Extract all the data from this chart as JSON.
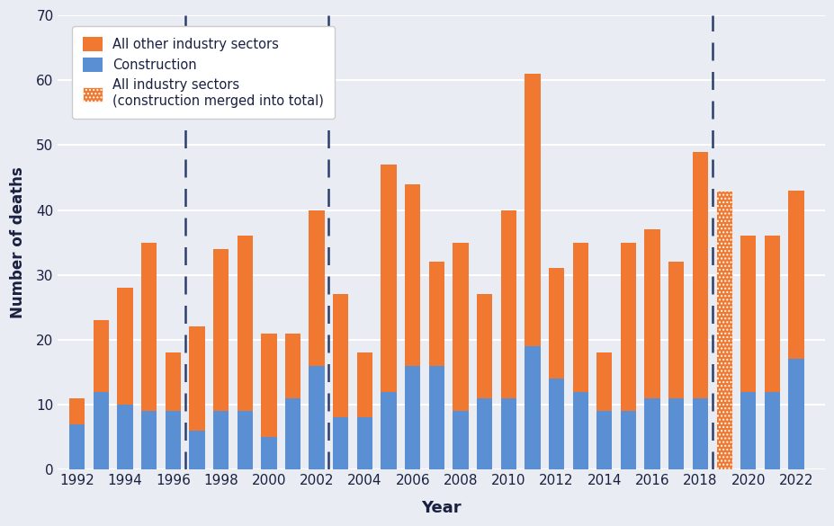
{
  "years": [
    1992,
    1993,
    1994,
    1995,
    1996,
    1997,
    1998,
    1999,
    2000,
    2001,
    2002,
    2003,
    2004,
    2005,
    2006,
    2007,
    2008,
    2009,
    2010,
    2011,
    2012,
    2013,
    2014,
    2015,
    2016,
    2017,
    2018,
    2019,
    2020,
    2021,
    2022
  ],
  "construction": [
    7,
    12,
    10,
    9,
    9,
    6,
    9,
    9,
    5,
    11,
    16,
    8,
    8,
    12,
    16,
    16,
    9,
    11,
    11,
    19,
    14,
    12,
    9,
    9,
    11,
    11,
    11,
    0,
    12,
    12,
    17
  ],
  "other_sectors": [
    4,
    11,
    18,
    26,
    9,
    16,
    25,
    27,
    16,
    10,
    24,
    19,
    10,
    35,
    28,
    16,
    26,
    16,
    29,
    42,
    17,
    23,
    9,
    26,
    26,
    21,
    38,
    0,
    24,
    24,
    26
  ],
  "merged_total": [
    0,
    0,
    0,
    0,
    0,
    0,
    0,
    0,
    0,
    0,
    0,
    0,
    0,
    0,
    0,
    0,
    0,
    0,
    0,
    0,
    0,
    0,
    0,
    0,
    0,
    0,
    0,
    43,
    0,
    0,
    0
  ],
  "dashed_lines": [
    1996.5,
    2002.5,
    2018.5
  ],
  "construction_color": "#5b8fd4",
  "other_sectors_color": "#f07830",
  "merged_color": "#f07830",
  "background_color": "#eaecf3",
  "ylabel": "Number of deaths",
  "xlabel": "Year",
  "ylim": [
    0,
    70
  ],
  "yticks": [
    0,
    10,
    20,
    30,
    40,
    50,
    60,
    70
  ],
  "xticks": [
    1992,
    1994,
    1996,
    1998,
    2000,
    2002,
    2004,
    2006,
    2008,
    2010,
    2012,
    2014,
    2016,
    2018,
    2020,
    2022
  ],
  "legend_labels": [
    "All other industry sectors",
    "Construction",
    "All industry sectors\n(construction merged into total)"
  ],
  "grid_color": "#ffffff",
  "dashed_line_color": "#2c3e6b",
  "bar_width": 0.65,
  "text_color": "#1a2040",
  "legend_fontsize": 10.5,
  "axis_label_fontsize": 13,
  "tick_fontsize": 11
}
